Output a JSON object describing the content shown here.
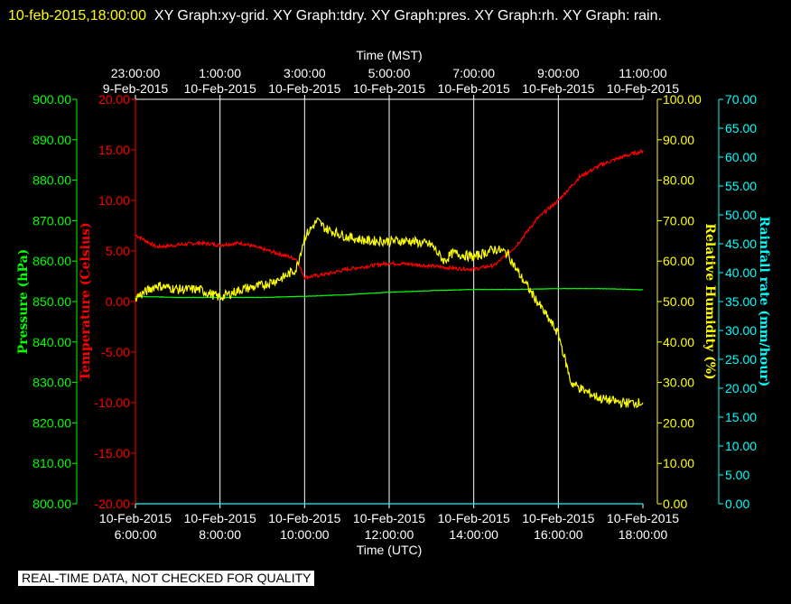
{
  "header": {
    "timestamp": "10-feb-2015,18:00:00",
    "graphs": "XY Graph:xy-grid.  XY Graph:tdry.  XY Graph:pres.  XY Graph:rh.  XY Graph: rain."
  },
  "notice": "REAL-TIME DATA, NOT CHECKED FOR QUALITY",
  "chart_data": {
    "type": "line",
    "grid": "vertical lines at each labeled time",
    "xlabel_top": "Time (MST)",
    "xlabel_bottom": "Time (UTC)",
    "top_ticks": [
      {
        "time": "23:00:00",
        "date": "9-Feb-2015"
      },
      {
        "time": "1:00:00",
        "date": "10-Feb-2015"
      },
      {
        "time": "3:00:00",
        "date": "10-Feb-2015"
      },
      {
        "time": "5:00:00",
        "date": "10-Feb-2015"
      },
      {
        "time": "7:00:00",
        "date": "10-Feb-2015"
      },
      {
        "time": "9:00:00",
        "date": "10-Feb-2015"
      },
      {
        "time": "11:00:00",
        "date": "10-Feb-2015"
      }
    ],
    "bottom_ticks": [
      {
        "date": "10-Feb-2015",
        "time": "6:00:00"
      },
      {
        "date": "10-Feb-2015",
        "time": "8:00:00"
      },
      {
        "date": "10-Feb-2015",
        "time": "10:00:00"
      },
      {
        "date": "10-Feb-2015",
        "time": "12:00:00"
      },
      {
        "date": "10-Feb-2015",
        "time": "14:00:00"
      },
      {
        "date": "10-Feb-2015",
        "time": "16:00:00"
      },
      {
        "date": "10-Feb-2015",
        "time": "18:00:00"
      }
    ],
    "x_range_utc_hours": [
      6,
      18
    ],
    "axes": {
      "pressure": {
        "label": "Pressure (hPa)",
        "color": "#00ff00",
        "range": [
          800,
          900
        ],
        "ticks": [
          "800.00",
          "810.00",
          "820.00",
          "830.00",
          "840.00",
          "850.00",
          "860.00",
          "870.00",
          "880.00",
          "890.00",
          "900.00"
        ]
      },
      "temperature": {
        "label": "Temperature (Celsius)",
        "color": "#ff0000",
        "range": [
          -20,
          20
        ],
        "ticks": [
          "-20.00",
          "-15.00",
          "-10.00",
          "-5.00",
          "0.00",
          "5.00",
          "10.00",
          "15.00",
          "20.00"
        ]
      },
      "humidity": {
        "label": "Relative Humidity (%)",
        "color": "#ffff00",
        "range": [
          0,
          100
        ],
        "ticks": [
          "0.00",
          "10.00",
          "20.00",
          "30.00",
          "40.00",
          "50.00",
          "60.00",
          "70.00",
          "80.00",
          "90.00",
          "100.00"
        ]
      },
      "rain": {
        "label": "Rainfall rate (mm/hour)",
        "color": "#00ffff",
        "range": [
          0,
          70
        ],
        "ticks": [
          "0.00",
          "5.00",
          "10.00",
          "15.00",
          "20.00",
          "25.00",
          "30.00",
          "35.00",
          "40.00",
          "45.00",
          "50.00",
          "55.00",
          "60.00",
          "65.00",
          "70.00"
        ]
      }
    },
    "series": [
      {
        "axis": "temperature",
        "color": "#ff0000",
        "x": [
          6,
          6.5,
          7,
          7.5,
          8,
          8.5,
          9,
          9.5,
          9.8,
          10,
          10.5,
          11,
          11.5,
          12,
          12.5,
          13,
          13.5,
          14,
          14.5,
          15,
          15.5,
          16,
          16.5,
          17,
          17.5,
          18
        ],
        "y": [
          6.6,
          5.4,
          5.6,
          5.8,
          5.6,
          5.8,
          5.2,
          4.6,
          4.2,
          2.4,
          2.7,
          3.2,
          3.5,
          3.8,
          3.7,
          3.5,
          3.3,
          3.2,
          3.6,
          5.5,
          8.2,
          10.0,
          12.3,
          13.5,
          14.3,
          14.9
        ]
      },
      {
        "axis": "pressure",
        "color": "#00ff00",
        "x": [
          6,
          7,
          8,
          9,
          10,
          11,
          12,
          13,
          14,
          15,
          16,
          17,
          18
        ],
        "y": [
          851.3,
          851.0,
          851.0,
          851.0,
          851.3,
          851.7,
          852.3,
          852.7,
          853.0,
          853.0,
          853.2,
          853.2,
          852.9
        ]
      },
      {
        "axis": "humidity",
        "color": "#ffff00",
        "x": [
          6,
          6.5,
          7,
          7.5,
          8,
          8.5,
          9,
          9.5,
          9.8,
          10,
          10.3,
          10.5,
          11,
          11.5,
          12,
          12.5,
          13,
          13.3,
          13.5,
          14,
          14.5,
          14.8,
          15,
          15.5,
          16,
          16.3,
          16.6,
          17,
          17.5,
          18
        ],
        "y": [
          51,
          54,
          53,
          53,
          51,
          53,
          54,
          56,
          58,
          66,
          70,
          68,
          66,
          65,
          65,
          65,
          64,
          60,
          62,
          61,
          63,
          62,
          58,
          50,
          42,
          30,
          28,
          26,
          25,
          25
        ]
      },
      {
        "axis": "rain",
        "color": "#00ffff",
        "x": [
          6,
          18
        ],
        "y": [
          0,
          0
        ]
      }
    ]
  }
}
